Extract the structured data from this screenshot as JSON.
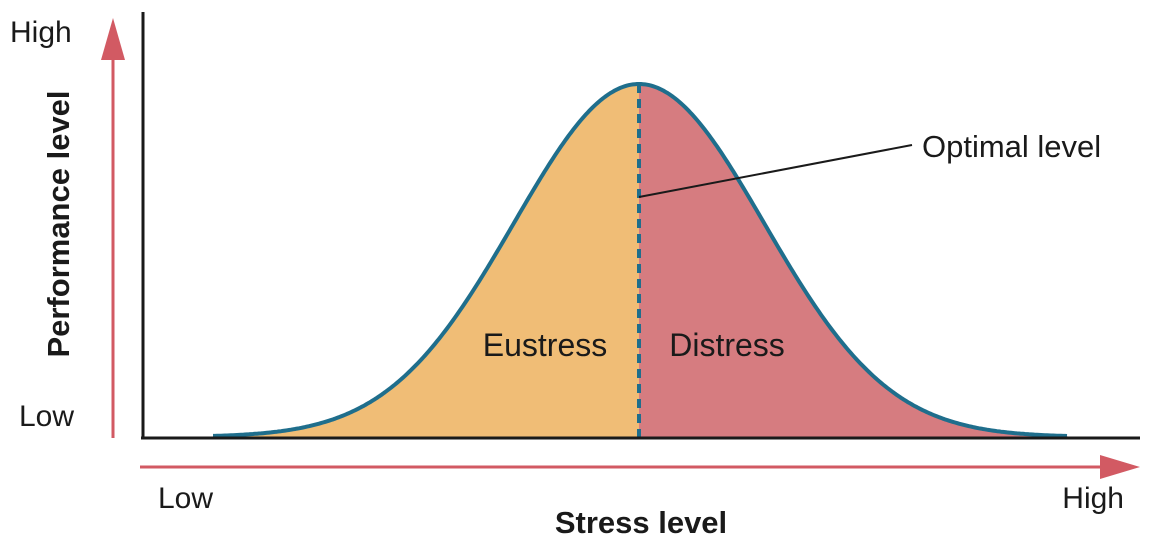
{
  "diagram": {
    "y_axis": {
      "title": "Performance level",
      "high_label": "High",
      "low_label": "Low"
    },
    "x_axis": {
      "title": "Stress level",
      "low_label": "Low",
      "high_label": "High"
    },
    "regions": {
      "left": "Eustress",
      "right": "Distress"
    },
    "callout": "Optimal level",
    "colors": {
      "eustress_fill": "#f0bd76",
      "distress_fill": "#d67c80",
      "curve": "#1f6e8c",
      "arrow": "#d25a63",
      "axis": "#1a1a1a"
    }
  }
}
